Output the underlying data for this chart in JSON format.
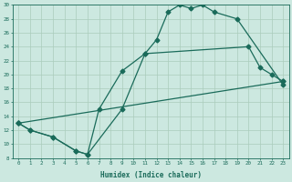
{
  "xlabel": "Humidex (Indice chaleur)",
  "bg_color": "#cce8e0",
  "grid_color": "#aaccbb",
  "line_color": "#1a6b5a",
  "xlim": [
    -0.5,
    23.5
  ],
  "ylim": [
    8,
    30
  ],
  "xticks": [
    0,
    1,
    2,
    3,
    4,
    5,
    6,
    7,
    8,
    9,
    10,
    11,
    12,
    13,
    14,
    15,
    16,
    17,
    18,
    19,
    20,
    21,
    22,
    23
  ],
  "yticks": [
    8,
    10,
    12,
    14,
    16,
    18,
    20,
    22,
    24,
    26,
    28,
    30
  ],
  "line1_x": [
    0,
    1,
    3,
    5,
    6,
    9,
    11,
    12,
    13,
    14,
    15,
    16,
    17,
    19,
    23
  ],
  "line1_y": [
    13,
    12,
    11,
    9,
    8.5,
    15,
    23,
    25,
    29,
    30,
    29.5,
    30,
    29,
    28,
    18.5
  ],
  "line2_x": [
    0,
    1,
    3,
    5,
    6,
    7,
    9,
    11,
    20,
    21,
    22,
    23
  ],
  "line2_y": [
    13,
    12,
    11,
    9,
    8.5,
    15,
    20.5,
    23,
    24,
    21,
    20,
    19
  ],
  "line3_x": [
    0,
    23
  ],
  "line3_y": [
    13,
    19
  ]
}
